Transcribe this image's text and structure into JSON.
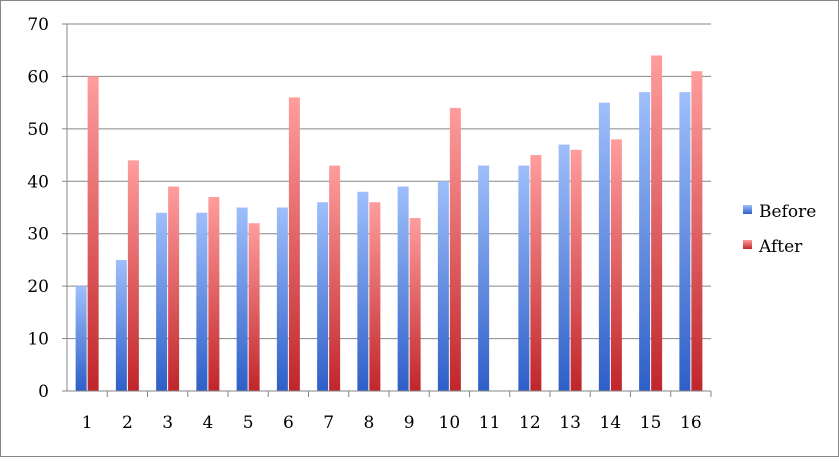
{
  "chart_data": {
    "type": "bar",
    "title": "",
    "xlabel": "",
    "ylabel": "",
    "categories": [
      "1",
      "2",
      "3",
      "4",
      "5",
      "6",
      "7",
      "8",
      "9",
      "10",
      "11",
      "12",
      "13",
      "14",
      "15",
      "16"
    ],
    "series": [
      {
        "name": "Before",
        "values": [
          20,
          25,
          34,
          34,
          35,
          35,
          36,
          38,
          39,
          40,
          43,
          43,
          47,
          55,
          57,
          57
        ]
      },
      {
        "name": "After",
        "values": [
          60,
          44,
          39,
          37,
          32,
          56,
          43,
          36,
          33,
          54,
          null,
          45,
          46,
          48,
          64,
          61
        ]
      }
    ],
    "ylim": [
      0,
      70
    ],
    "yticks": [
      0,
      10,
      20,
      30,
      40,
      50,
      60,
      70
    ],
    "grid": true,
    "legend": "right",
    "colors": {
      "Before": {
        "top": "#9fbffb",
        "bottom": "#2e5fc8"
      },
      "After": {
        "top": "#ff9d9d",
        "bottom": "#c0262b"
      }
    }
  }
}
